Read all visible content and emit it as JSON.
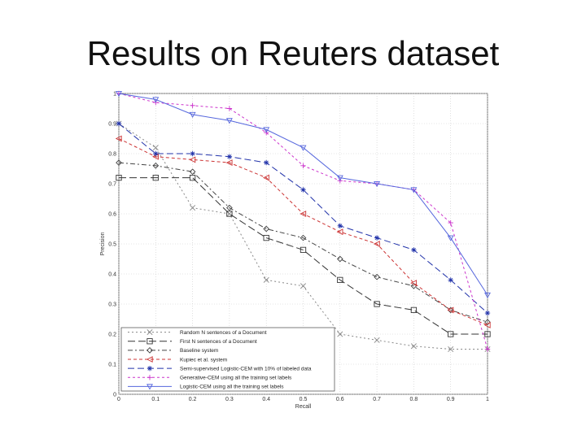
{
  "slide": {
    "title": "Results on Reuters dataset"
  },
  "chart_data": {
    "type": "line",
    "xlabel": "Recall",
    "ylabel": "Precision",
    "xlim": [
      0,
      1
    ],
    "ylim": [
      0,
      1
    ],
    "x_ticks": [
      "0",
      "0.1",
      "0.2",
      "0.3",
      "0.4",
      "0.5",
      "0.6",
      "0.7",
      "0.8",
      "0.9",
      "1"
    ],
    "y_ticks": [
      "0",
      "0.1",
      "0.2",
      "0.3",
      "0.4",
      "0.5",
      "0.6",
      "0.7",
      "0.8",
      "0.9",
      "1"
    ],
    "grid": true,
    "legend_position": "bottom-left",
    "x": [
      0,
      0.1,
      0.2,
      0.3,
      0.4,
      0.5,
      0.6,
      0.7,
      0.8,
      0.9,
      1
    ],
    "series": [
      {
        "name": "Random N sentences of a Document",
        "marker": "x",
        "color": "#888888",
        "dash": "2,3",
        "values": [
          0.9,
          0.82,
          0.62,
          0.6,
          0.38,
          0.36,
          0.2,
          0.18,
          0.16,
          0.15,
          0.15
        ]
      },
      {
        "name": "First N sentences of a Document",
        "marker": "square",
        "color": "#333333",
        "dash": "9,4",
        "values": [
          0.72,
          0.72,
          0.72,
          0.6,
          0.52,
          0.48,
          0.38,
          0.3,
          0.28,
          0.2,
          0.2
        ]
      },
      {
        "name": "Baseline system",
        "marker": "diamond",
        "color": "#444444",
        "dash": "6,3,2,3",
        "values": [
          0.77,
          0.76,
          0.74,
          0.62,
          0.55,
          0.52,
          0.45,
          0.39,
          0.36,
          0.28,
          0.24
        ]
      },
      {
        "name": "Kupiec et al. system",
        "marker": "triangle-left",
        "color": "#cc3333",
        "dash": "4,3",
        "values": [
          0.85,
          0.79,
          0.78,
          0.77,
          0.72,
          0.6,
          0.54,
          0.5,
          0.37,
          0.28,
          0.23
        ]
      },
      {
        "name": "Semi-supervised Logistic-CEM with 10% of labeled data",
        "marker": "star",
        "color": "#2233aa",
        "dash": "8,4",
        "values": [
          0.9,
          0.8,
          0.8,
          0.79,
          0.77,
          0.68,
          0.56,
          0.52,
          0.48,
          0.38,
          0.27
        ]
      },
      {
        "name": "Generative-CEM using all the training set labels",
        "marker": "plus",
        "color": "#cc33cc",
        "dash": "3,3",
        "values": [
          1.0,
          0.97,
          0.96,
          0.95,
          0.87,
          0.76,
          0.71,
          0.7,
          0.68,
          0.57,
          0.15
        ]
      },
      {
        "name": "Logistic-CEM using all the training set labels",
        "marker": "triangle-down",
        "color": "#5566dd",
        "dash": "",
        "values": [
          1.0,
          0.98,
          0.93,
          0.91,
          0.88,
          0.82,
          0.72,
          0.7,
          0.68,
          0.52,
          0.33
        ]
      }
    ]
  }
}
